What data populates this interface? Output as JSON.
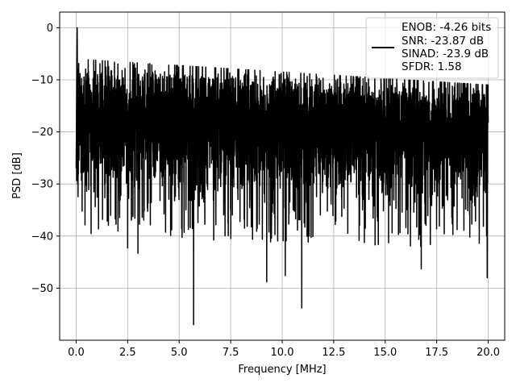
{
  "chart_data": {
    "type": "line",
    "title": "",
    "xlabel": "Frequency [MHz]",
    "ylabel": "PSD [dB]",
    "xlim": [
      -0.8,
      20.8
    ],
    "ylim": [
      -60,
      3
    ],
    "x_ticks": [
      0.0,
      2.5,
      5.0,
      7.5,
      10.0,
      12.5,
      15.0,
      17.5,
      20.0
    ],
    "x_tick_labels": [
      "0.0",
      "2.5",
      "5.0",
      "7.5",
      "10.0",
      "12.5",
      "15.0",
      "17.5",
      "20.0"
    ],
    "y_ticks": [
      0,
      -10,
      -20,
      -30,
      -40,
      -50
    ],
    "y_tick_labels": [
      "0",
      "−10",
      "−20",
      "−30",
      "−40",
      "−50"
    ],
    "grid": true,
    "legend": {
      "placement": "upper-right",
      "line_color": "#000000",
      "entries": [
        "ENOB: -4.26 bits",
        "SNR: -23.87 dB",
        "SINAD: -23.9 dB",
        "SFDR: 1.58"
      ]
    },
    "series": [
      {
        "color": "#000000",
        "x_range": [
          0,
          20
        ],
        "description_peak": [
          0.05,
          0
        ],
        "notable_minima": [
          {
            "x": 5.7,
            "y": -57
          },
          {
            "x": 10.95,
            "y": -53.8
          },
          {
            "x": 9.25,
            "y": -48.8
          },
          {
            "x": 19.95,
            "y": -48
          },
          {
            "x": 10.15,
            "y": -47.6
          },
          {
            "x": 16.75,
            "y": -46.3
          },
          {
            "x": 2.5,
            "y": -42.3
          },
          {
            "x": 3.0,
            "y": -43.3
          }
        ]
      }
    ]
  }
}
